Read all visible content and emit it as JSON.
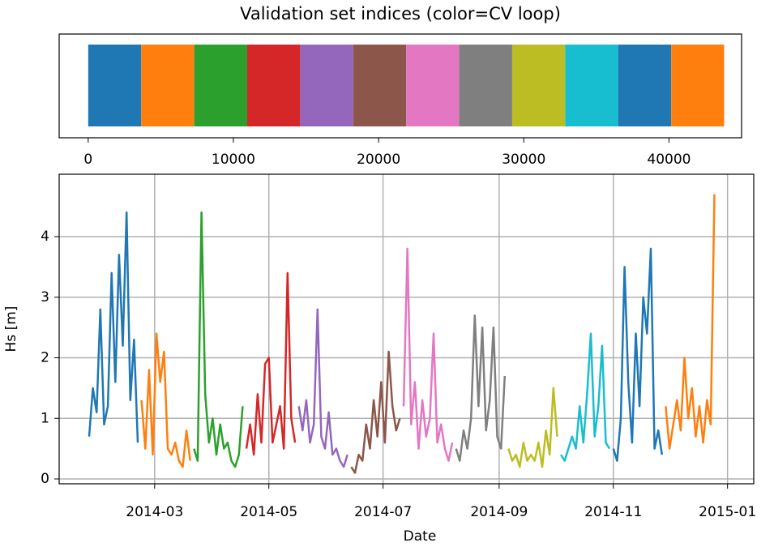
{
  "chart_data": [
    {
      "type": "broken-bar",
      "title": "Validation set indices (color=CV loop)",
      "values": [
        3650,
        3650,
        3650,
        3650,
        3650,
        3650,
        3650,
        3650,
        3650,
        3650,
        3650,
        3650
      ],
      "colors": [
        "#1f77b4",
        "#ff7f0e",
        "#2ca02c",
        "#d62728",
        "#9467bd",
        "#8c564b",
        "#e377c2",
        "#7f7f7f",
        "#bcbd22",
        "#17becf",
        "#1f77b4",
        "#ff7f0e"
      ],
      "xlim": [
        -2000,
        45000
      ],
      "xticks": [
        0,
        10000,
        20000,
        30000,
        40000
      ]
    },
    {
      "type": "line",
      "xlabel": "Date",
      "ylabel": "Hs [m]",
      "xlim": [
        8,
        379
      ],
      "xticks": [
        {
          "value": 59,
          "label": "2014-03"
        },
        {
          "value": 120,
          "label": "2014-05"
        },
        {
          "value": 181,
          "label": "2014-07"
        },
        {
          "value": 243,
          "label": "2014-09"
        },
        {
          "value": 304,
          "label": "2014-11"
        },
        {
          "value": 365,
          "label": "2015-01"
        }
      ],
      "ylim": [
        -0.08,
        5.03
      ],
      "yticks": [
        0,
        1,
        2,
        3,
        4
      ],
      "grid": true,
      "series": [
        {
          "color": "#1f77b4",
          "x": [
            24,
            26,
            28,
            30,
            32,
            34,
            36,
            38,
            40,
            42,
            44,
            46,
            48,
            50
          ],
          "values": [
            0.7,
            1.5,
            1.1,
            2.8,
            0.9,
            1.2,
            3.4,
            1.6,
            3.7,
            2.2,
            4.4,
            1.3,
            2.3,
            0.6
          ]
        },
        {
          "color": "#ff7f0e",
          "x": [
            52,
            54,
            56,
            58,
            60,
            62,
            64,
            66,
            68,
            70,
            72,
            74,
            76,
            78
          ],
          "values": [
            1.3,
            0.5,
            1.8,
            0.4,
            2.4,
            1.6,
            2.1,
            0.5,
            0.4,
            0.6,
            0.3,
            0.2,
            0.8,
            0.3
          ]
        },
        {
          "color": "#2ca02c",
          "x": [
            80,
            82,
            84,
            86,
            88,
            90,
            92,
            94,
            96,
            98,
            100,
            102,
            104,
            106
          ],
          "values": [
            0.5,
            0.3,
            4.4,
            1.4,
            0.6,
            1.0,
            0.4,
            0.9,
            0.5,
            0.6,
            0.3,
            0.2,
            0.4,
            1.2
          ]
        },
        {
          "color": "#d62728",
          "x": [
            108,
            110,
            112,
            114,
            116,
            118,
            120,
            122,
            124,
            126,
            128,
            130,
            132,
            134
          ],
          "values": [
            0.5,
            0.9,
            0.4,
            1.4,
            0.6,
            1.9,
            2.0,
            0.6,
            0.9,
            1.2,
            0.5,
            3.4,
            1.0,
            0.6
          ]
        },
        {
          "color": "#9467bd",
          "x": [
            136,
            138,
            140,
            142,
            144,
            146,
            148,
            150,
            152,
            154,
            156,
            158,
            160,
            162
          ],
          "values": [
            1.2,
            0.8,
            1.3,
            0.6,
            0.9,
            2.8,
            0.7,
            0.5,
            1.1,
            0.4,
            0.5,
            0.3,
            0.2,
            0.4
          ]
        },
        {
          "color": "#8c564b",
          "x": [
            164,
            166,
            168,
            170,
            172,
            174,
            176,
            178,
            180,
            182,
            184,
            186,
            188,
            190
          ],
          "values": [
            0.2,
            0.1,
            0.4,
            0.3,
            0.9,
            0.5,
            1.3,
            0.7,
            1.6,
            0.6,
            2.1,
            1.2,
            0.8,
            1.0
          ]
        },
        {
          "color": "#e377c2",
          "x": [
            192,
            194,
            196,
            198,
            200,
            202,
            204,
            206,
            208,
            210,
            212,
            214,
            216,
            218
          ],
          "values": [
            1.2,
            3.8,
            0.9,
            1.6,
            0.5,
            1.3,
            0.7,
            1.0,
            2.4,
            0.6,
            0.9,
            0.5,
            0.3,
            0.6
          ]
        },
        {
          "color": "#7f7f7f",
          "x": [
            220,
            222,
            224,
            226,
            228,
            230,
            232,
            234,
            236,
            238,
            240,
            242,
            244,
            246
          ],
          "values": [
            0.5,
            0.3,
            0.8,
            0.5,
            1.0,
            2.7,
            1.2,
            2.5,
            0.8,
            1.3,
            2.5,
            0.7,
            0.5,
            1.7
          ]
        },
        {
          "color": "#bcbd22",
          "x": [
            248,
            250,
            252,
            254,
            256,
            258,
            260,
            262,
            264,
            266,
            268,
            270,
            272,
            274
          ],
          "values": [
            0.5,
            0.3,
            0.4,
            0.2,
            0.6,
            0.3,
            0.4,
            0.3,
            0.6,
            0.2,
            0.8,
            0.4,
            1.5,
            0.7
          ]
        },
        {
          "color": "#17becf",
          "x": [
            276,
            278,
            280,
            282,
            284,
            286,
            288,
            290,
            292,
            294,
            296,
            298,
            300,
            302
          ],
          "values": [
            0.4,
            0.3,
            0.5,
            0.7,
            0.5,
            1.2,
            0.6,
            1.4,
            2.4,
            0.7,
            1.2,
            2.2,
            0.6,
            0.5
          ]
        },
        {
          "color": "#1f77b4",
          "x": [
            304,
            306,
            308,
            310,
            312,
            314,
            316,
            318,
            320,
            322,
            324,
            326,
            328,
            330
          ],
          "values": [
            0.5,
            0.3,
            1.0,
            3.5,
            1.6,
            0.6,
            2.4,
            1.2,
            3.0,
            2.4,
            3.8,
            0.5,
            0.8,
            0.4
          ]
        },
        {
          "color": "#ff7f0e",
          "x": [
            332,
            334,
            336,
            338,
            340,
            342,
            344,
            346,
            348,
            350,
            352,
            354,
            356,
            358
          ],
          "values": [
            1.2,
            0.5,
            0.9,
            1.3,
            0.8,
            2.0,
            1.0,
            1.5,
            0.7,
            1.2,
            0.6,
            1.3,
            0.9,
            4.7
          ]
        }
      ]
    }
  ]
}
